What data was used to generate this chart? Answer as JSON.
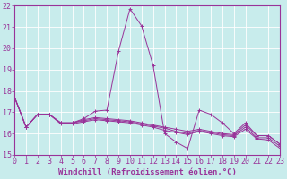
{
  "title": "",
  "xlabel": "Windchill (Refroidissement éolien,°C)",
  "ylabel": "",
  "bg_color": "#c8ecec",
  "line_color": "#993399",
  "grid_color": "#ffffff",
  "spine_color": "#993399",
  "xmin": 0,
  "xmax": 23,
  "ymin": 15,
  "ymax": 22,
  "tick_fontsize": 6.0,
  "xlabel_fontsize": 6.5,
  "series": [
    [
      17.7,
      16.3,
      16.9,
      16.9,
      16.5,
      16.5,
      16.7,
      17.05,
      17.1,
      19.85,
      21.85,
      21.05,
      19.2,
      16.0,
      15.6,
      15.3,
      17.1,
      16.9,
      16.5,
      16.0,
      16.5,
      15.9,
      15.9,
      15.5
    ],
    [
      17.7,
      16.3,
      16.9,
      16.9,
      16.5,
      16.5,
      16.65,
      16.75,
      16.7,
      16.65,
      16.6,
      16.5,
      16.4,
      16.3,
      16.2,
      16.1,
      16.2,
      16.1,
      16.0,
      15.95,
      16.4,
      15.9,
      15.9,
      15.5
    ],
    [
      17.7,
      16.3,
      16.9,
      16.9,
      16.5,
      16.5,
      16.6,
      16.7,
      16.65,
      16.6,
      16.55,
      16.45,
      16.35,
      16.25,
      16.1,
      16.0,
      16.15,
      16.05,
      15.95,
      15.9,
      16.3,
      15.8,
      15.8,
      15.4
    ],
    [
      17.7,
      16.3,
      16.9,
      16.9,
      16.45,
      16.45,
      16.55,
      16.65,
      16.6,
      16.55,
      16.5,
      16.4,
      16.3,
      16.15,
      16.05,
      15.95,
      16.1,
      16.0,
      15.9,
      15.85,
      16.2,
      15.75,
      15.7,
      15.3
    ]
  ]
}
